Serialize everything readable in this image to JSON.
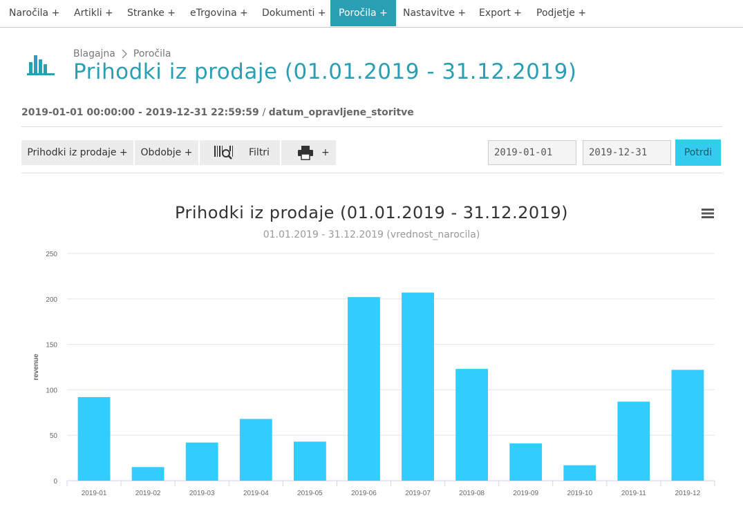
{
  "nav": {
    "items": [
      {
        "label": "Naročila +"
      },
      {
        "label": "Artikli +"
      },
      {
        "label": "Stranke +"
      },
      {
        "label": "eTrgovina +"
      },
      {
        "label": "Dokumenti +"
      },
      {
        "label": "Poročila +"
      },
      {
        "label": "Nastavitve +"
      },
      {
        "label": "Export +"
      },
      {
        "label": "Podjetje +"
      }
    ]
  },
  "breadcrumb": {
    "root": "Blagajna",
    "current": "Poročila"
  },
  "page": {
    "title": "Prihodki iz prodaje (01.01.2019 - 31.12.2019)",
    "range_text": "2019-01-01 00:00:00 - 2019-12-31 22:59:59",
    "field_name": "datum_opravljene_storitve"
  },
  "toolbar": {
    "report_label": "Prihodki iz prodaje +",
    "period_label": "Obdobje +",
    "filters_label": "Filtri",
    "print_plus": "+",
    "date_from": "2019-01-01",
    "date_to": "2019-12-31",
    "confirm_label": "Potrdi"
  },
  "icons": {
    "page": "bar-chart-icon",
    "barcode": "barcode-search-icon",
    "print": "printer-icon",
    "menu": "hamburger-menu-icon"
  },
  "colors": {
    "accent": "#2a9fb3",
    "bar": "#33ccff",
    "confirm": "#33ccee"
  },
  "chart_data": {
    "type": "bar",
    "title": "Prihodki iz prodaje (01.01.2019 - 31.12.2019)",
    "subtitle": "01.01.2019 - 31.12.2019 (vrednost_narocila)",
    "ylabel": "revenue",
    "xlabel": "",
    "ylim": [
      0,
      250
    ],
    "yticks": [
      0,
      50,
      100,
      150,
      200,
      250
    ],
    "grid": true,
    "categories": [
      "2019-01",
      "2019-02",
      "2019-03",
      "2019-04",
      "2019-05",
      "2019-06",
      "2019-07",
      "2019-08",
      "2019-09",
      "2019-10",
      "2019-11",
      "2019-12"
    ],
    "values": [
      92,
      15,
      42,
      68,
      43,
      202,
      207,
      123,
      41,
      17,
      87,
      122
    ]
  }
}
